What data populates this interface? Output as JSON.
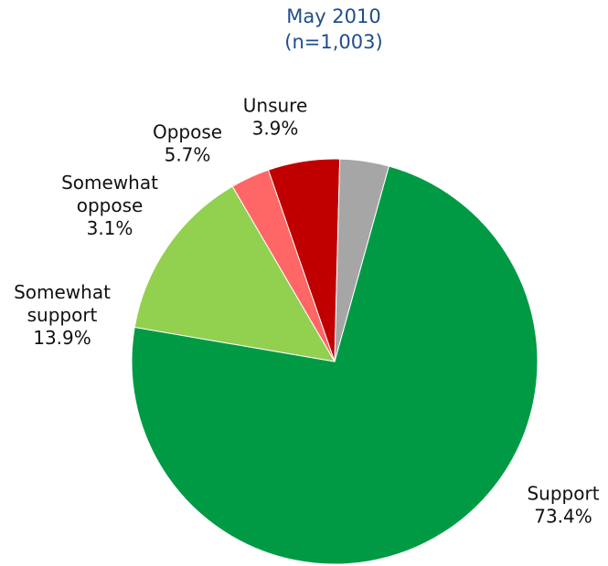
{
  "chart_data": {
    "type": "pie",
    "title": "May 2010",
    "subtitle": "(n=1,003)",
    "slices": [
      {
        "label_lines": [
          "Support"
        ],
        "value": 73.4,
        "value_label": "73.4%",
        "color": "#009a44"
      },
      {
        "label_lines": [
          "Somewhat",
          "support"
        ],
        "value": 13.9,
        "value_label": "13.9%",
        "color": "#92d050"
      },
      {
        "label_lines": [
          "Somewhat",
          "oppose"
        ],
        "value": 3.1,
        "value_label": "3.1%",
        "color": "#ff6666"
      },
      {
        "label_lines": [
          "Oppose"
        ],
        "value": 5.7,
        "value_label": "5.7%",
        "color": "#c00000"
      },
      {
        "label_lines": [
          "Unsure"
        ],
        "value": 3.9,
        "value_label": "3.9%",
        "color": "#a6a6a6"
      }
    ]
  }
}
